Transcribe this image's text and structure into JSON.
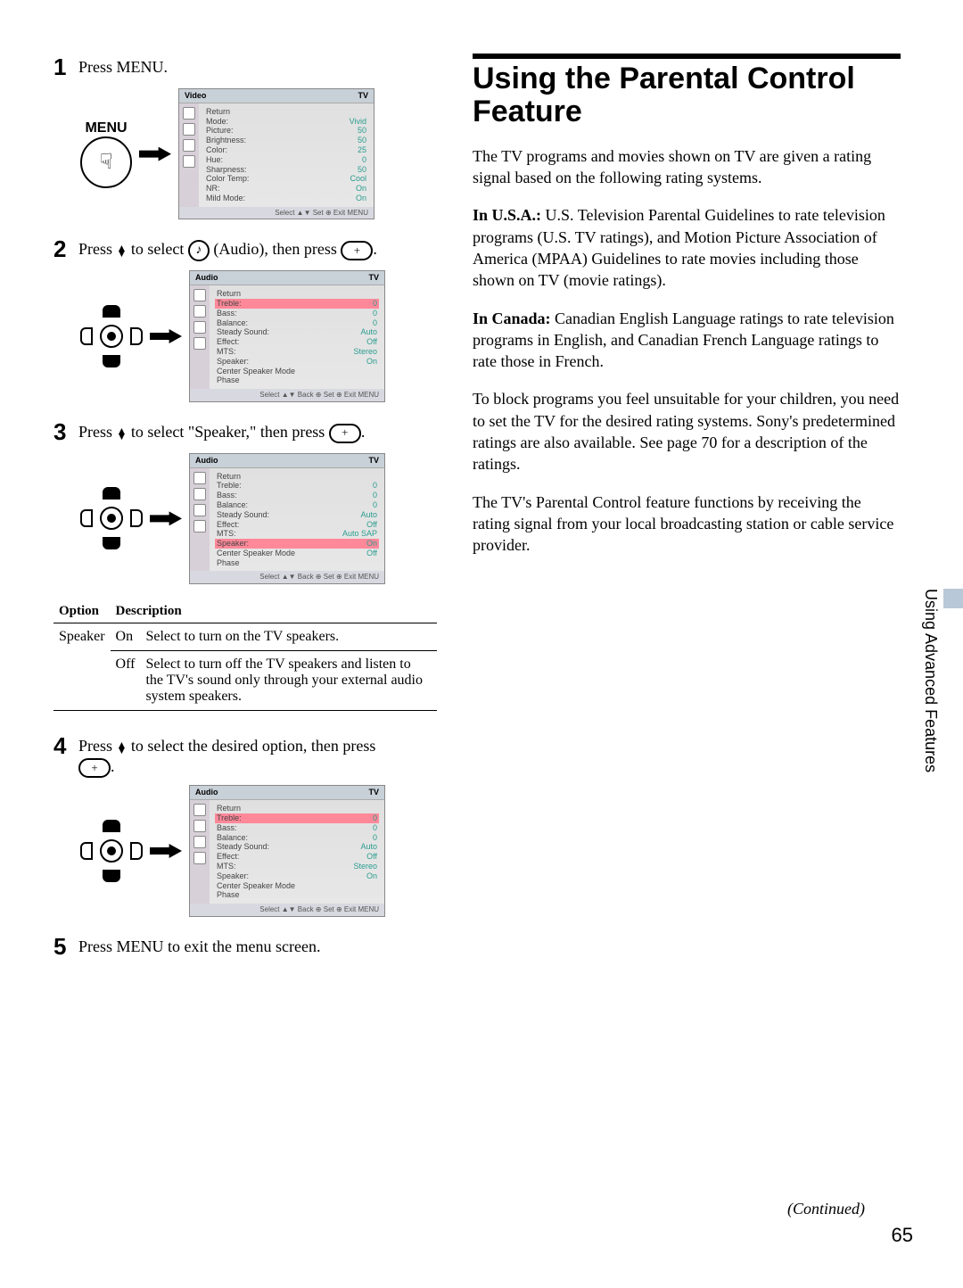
{
  "left": {
    "steps": [
      {
        "num": "1",
        "text": "Press MENU."
      },
      {
        "num": "2",
        "text_pre": "Press ",
        "text_mid": " to select ",
        "text_audio": " (Audio), then press ",
        "text_end": "."
      },
      {
        "num": "3",
        "text_pre": "Press ",
        "text_mid": " to select \"Speaker,\" then press ",
        "text_end": "."
      },
      {
        "num": "4",
        "text_pre": "Press ",
        "text_mid": " to select the desired option, then press ",
        "text_end": "."
      },
      {
        "num": "5",
        "text": "Press MENU to exit the menu screen."
      }
    ],
    "menu_label": "MENU",
    "osd_video": {
      "title": "Video",
      "tv": "TV",
      "rows": [
        {
          "lab": "Return",
          "val": ""
        },
        {
          "lab": "Mode:",
          "val": "Vivid"
        },
        {
          "lab": "Picture:",
          "val": "50"
        },
        {
          "lab": "Brightness:",
          "val": "50"
        },
        {
          "lab": "Color:",
          "val": "25"
        },
        {
          "lab": "Hue:",
          "val": "0"
        },
        {
          "lab": "Sharpness:",
          "val": "50"
        },
        {
          "lab": "Color Temp:",
          "val": "Cool"
        },
        {
          "lab": "NR:",
          "val": "On"
        },
        {
          "lab": "Mild Mode:",
          "val": "On"
        }
      ],
      "footer": "Select ▲▼  Set ⊕  Exit MENU"
    },
    "osd_audio1": {
      "title": "Audio",
      "tv": "TV",
      "rows": [
        {
          "lab": "Return",
          "val": ""
        },
        {
          "lab": "Treble:",
          "val": "0",
          "hl": true
        },
        {
          "lab": "Bass:",
          "val": "0"
        },
        {
          "lab": "Balance:",
          "val": "0"
        },
        {
          "lab": "Steady Sound:",
          "val": "Auto"
        },
        {
          "lab": "Effect:",
          "val": "Off"
        },
        {
          "lab": "MTS:",
          "val": "Stereo"
        },
        {
          "lab": "Speaker:",
          "val": "On"
        },
        {
          "lab": "Center Speaker Mode",
          "val": ""
        },
        {
          "lab": "Phase",
          "val": ""
        }
      ],
      "footer": "Select ▲▼  Back ⊕  Set ⊕  Exit MENU"
    },
    "osd_audio2": {
      "title": "Audio",
      "tv": "TV",
      "rows": [
        {
          "lab": "Return",
          "val": ""
        },
        {
          "lab": "Treble:",
          "val": "0"
        },
        {
          "lab": "Bass:",
          "val": "0"
        },
        {
          "lab": "Balance:",
          "val": "0"
        },
        {
          "lab": "Steady Sound:",
          "val": "Auto"
        },
        {
          "lab": "Effect:",
          "val": "Off"
        },
        {
          "lab": "MTS:",
          "val": "Auto SAP"
        },
        {
          "lab": "Speaker:",
          "val": "On",
          "hl": true
        },
        {
          "lab": "Center Speaker Mode",
          "val": "Off"
        },
        {
          "lab": "Phase",
          "val": ""
        }
      ],
      "footer": "Select ▲▼  Back ⊕  Set ⊕  Exit MENU"
    },
    "osd_audio3": {
      "title": "Audio",
      "tv": "TV",
      "rows": [
        {
          "lab": "Return",
          "val": ""
        },
        {
          "lab": "Treble:",
          "val": "0",
          "hl": true
        },
        {
          "lab": "Bass:",
          "val": "0"
        },
        {
          "lab": "Balance:",
          "val": "0"
        },
        {
          "lab": "Steady Sound:",
          "val": "Auto"
        },
        {
          "lab": "Effect:",
          "val": "Off"
        },
        {
          "lab": "MTS:",
          "val": "Stereo"
        },
        {
          "lab": "Speaker:",
          "val": "On"
        },
        {
          "lab": "Center Speaker Mode",
          "val": ""
        },
        {
          "lab": "Phase",
          "val": ""
        }
      ],
      "footer": "Select ▲▼  Back ⊕  Set ⊕  Exit MENU"
    },
    "table": {
      "h1": "Option",
      "h2": "Description",
      "opt": "Speaker",
      "r1a": "On",
      "r1b": "Select to turn on the TV speakers.",
      "r2a": "Off",
      "r2b": "Select to turn off the TV speakers and listen to the TV's sound only through your external audio system speakers."
    }
  },
  "right": {
    "title": "Using the Parental Control Feature",
    "p1": "The TV programs and movies shown on TV are given a rating signal based on the following rating systems.",
    "p2a": "In U.S.A.:",
    "p2b": "  U.S. Television Parental Guidelines to rate television programs (U.S. TV ratings), and Motion Picture Association of America (MPAA) Guidelines to rate movies including those shown on TV (movie ratings).",
    "p3a": "In Canada:",
    "p3b": "  Canadian English Language ratings to rate television programs in English, and Canadian French Language ratings to rate those in French.",
    "p4": "To block programs you feel unsuitable for your children, you need to set the TV for the desired rating systems. Sony's predetermined ratings are also available. See page 70 for a description of the ratings.",
    "p5": "The TV's Parental Control feature functions by receiving the rating signal from your local broadcasting station or cable service provider."
  },
  "side": "Using Advanced Features",
  "continued": "(Continued)",
  "page": "65"
}
